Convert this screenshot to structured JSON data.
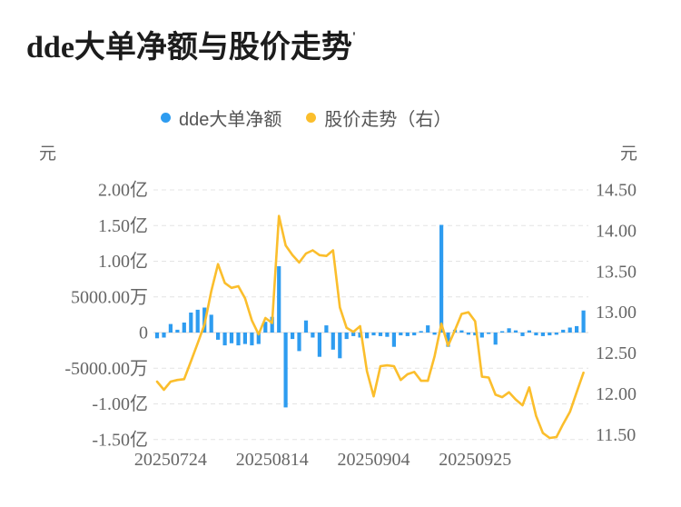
{
  "title": {
    "text": "dde大单净额与股价走势",
    "mark": "'"
  },
  "legend": {
    "items": [
      {
        "name": "dde大单净额",
        "color": "#2E9CF0",
        "type": "bar"
      },
      {
        "name": "股价走势（右）",
        "color": "#FBBE2C",
        "type": "line"
      }
    ]
  },
  "colors": {
    "bar": "#2E9CF0",
    "line": "#FBBE2C",
    "axis_text": "#666666",
    "legend_text": "#545454",
    "gridline": "#e4e4e4",
    "zero_line": "#d9d9d9",
    "title_text": "#1c1c1c"
  },
  "left_axis": {
    "unit": "元",
    "tick_labels": [
      "2.00亿",
      "1.50亿",
      "1.00亿",
      "5000.00万",
      "0",
      "-5000.00万",
      "-1.00亿",
      "-1.50亿"
    ],
    "tick_values_yi": [
      2.0,
      1.5,
      1.0,
      0.5,
      0,
      -0.5,
      -1.0,
      -1.5
    ]
  },
  "right_axis": {
    "unit": "元",
    "tick_labels": [
      "14.50",
      "14.00",
      "13.50",
      "13.00",
      "12.50",
      "12.00",
      "11.50"
    ],
    "tick_values": [
      14.5,
      14.0,
      13.5,
      13.0,
      12.5,
      12.0,
      11.5
    ]
  },
  "x_axis": {
    "labels": [
      {
        "index": 2,
        "text": "20250724"
      },
      {
        "index": 17,
        "text": "20250814"
      },
      {
        "index": 32,
        "text": "20250904"
      },
      {
        "index": 47,
        "text": "20250925"
      }
    ]
  },
  "chart_data": {
    "type": "combo",
    "n_points": 64,
    "left_range_yi": [
      -1.5,
      2.0
    ],
    "right_range_yuan": [
      11.5,
      14.5
    ],
    "grid": "horizontal-dashed",
    "legend_position": "top",
    "series": [
      {
        "name": "dde大单净额",
        "type": "bar",
        "axis": "left",
        "unit": "亿元",
        "values": [
          -0.08,
          -0.07,
          0.12,
          0.04,
          0.14,
          0.28,
          0.32,
          0.35,
          0.25,
          -0.1,
          -0.18,
          -0.15,
          -0.18,
          -0.16,
          -0.18,
          -0.16,
          0.15,
          0.22,
          0.93,
          -1.05,
          -0.09,
          -0.26,
          0.17,
          -0.07,
          -0.34,
          0.1,
          -0.24,
          -0.36,
          -0.09,
          -0.05,
          -0.07,
          -0.08,
          -0.04,
          -0.05,
          -0.06,
          -0.2,
          -0.04,
          -0.05,
          -0.04,
          0.02,
          0.1,
          -0.03,
          1.51,
          -0.2,
          0.04,
          0.03,
          -0.03,
          -0.04,
          -0.07,
          -0.02,
          -0.17,
          0.01,
          0.06,
          0.03,
          -0.05,
          0.03,
          -0.04,
          -0.05,
          -0.04,
          -0.03,
          0.04,
          0.07,
          0.09,
          0.31
        ]
      },
      {
        "name": "股价走势（右）",
        "type": "line",
        "axis": "right",
        "unit": "元",
        "values": [
          12.15,
          12.05,
          12.15,
          12.17,
          12.18,
          12.4,
          12.62,
          12.85,
          13.26,
          13.59,
          13.36,
          13.3,
          13.32,
          13.17,
          12.9,
          12.73,
          12.93,
          12.87,
          14.18,
          13.82,
          13.7,
          13.61,
          13.72,
          13.76,
          13.7,
          13.69,
          13.76,
          13.06,
          12.81,
          12.76,
          12.83,
          12.28,
          11.97,
          12.34,
          12.35,
          12.34,
          12.17,
          12.24,
          12.27,
          12.16,
          12.16,
          12.46,
          12.86,
          12.59,
          12.78,
          12.98,
          13.0,
          12.89,
          12.21,
          12.2,
          11.99,
          11.96,
          12.02,
          11.93,
          11.86,
          12.08,
          11.73,
          11.52,
          11.46,
          11.47,
          11.63,
          11.78,
          12.02,
          12.26
        ]
      }
    ]
  }
}
